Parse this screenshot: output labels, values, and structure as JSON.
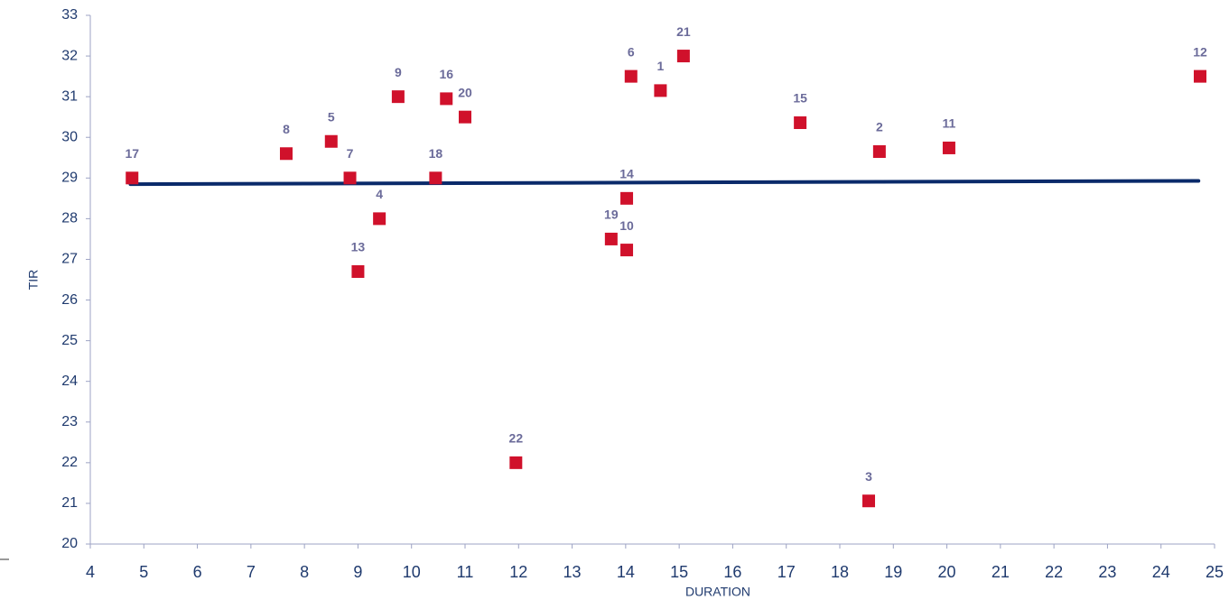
{
  "chart_data": {
    "type": "scatter",
    "xlabel": "DURATION",
    "ylabel": "TIR",
    "xlim": [
      4,
      25
    ],
    "ylim": [
      20,
      33
    ],
    "xticks": [
      4,
      5,
      6,
      7,
      8,
      9,
      10,
      11,
      12,
      13,
      14,
      15,
      16,
      17,
      18,
      19,
      20,
      21,
      22,
      23,
      24,
      25
    ],
    "yticks": [
      20,
      21,
      22,
      23,
      24,
      25,
      26,
      27,
      28,
      29,
      30,
      31,
      32,
      33
    ],
    "series": [
      {
        "color": "#d0112b",
        "point_labels": [
          "17",
          "8",
          "5",
          "7",
          "4",
          "13",
          "9",
          "16",
          "20",
          "18",
          "22",
          "6",
          "1",
          "21",
          "14",
          "19",
          "10",
          "15",
          "2",
          "3",
          "11",
          "12"
        ],
        "x": [
          4.78,
          7.66,
          8.5,
          8.85,
          9.4,
          9.0,
          9.75,
          10.65,
          11.0,
          10.45,
          11.95,
          14.1,
          14.65,
          15.08,
          14.02,
          13.73,
          14.02,
          17.26,
          18.74,
          18.54,
          20.04,
          24.73
        ],
        "values": [
          29.0,
          29.6,
          29.9,
          29.0,
          28.0,
          26.7,
          31.0,
          30.95,
          30.5,
          29.0,
          22.0,
          31.5,
          31.15,
          32.0,
          28.5,
          27.5,
          27.23,
          30.36,
          29.65,
          21.06,
          29.74,
          31.5
        ]
      }
    ],
    "trendline": {
      "color": "#0a2a6a",
      "x": [
        4.75,
        24.7
      ],
      "values": [
        28.85,
        28.93
      ]
    }
  }
}
